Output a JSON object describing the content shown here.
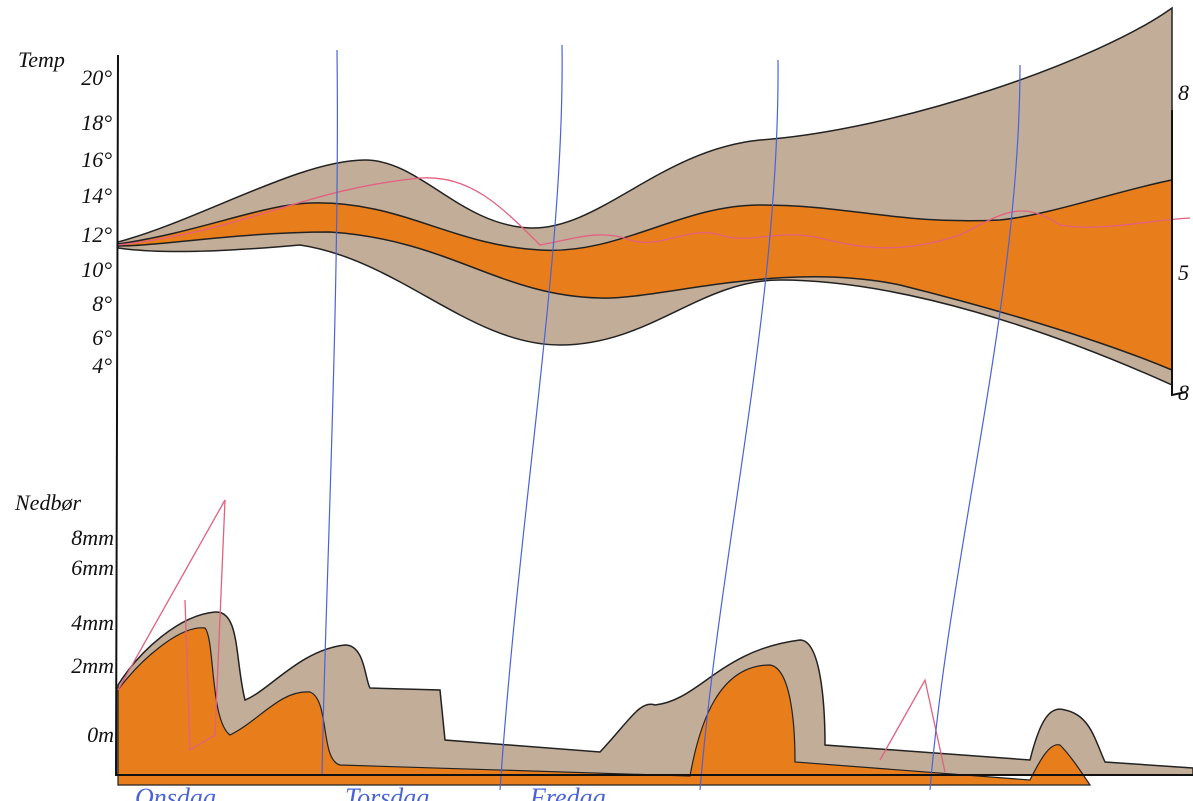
{
  "temperature": {
    "title": "Temp",
    "ticks": [
      "20°",
      "18°",
      "16°",
      "14°",
      "12°",
      "10°",
      "8°",
      "6°",
      "4°"
    ],
    "right_ticks": [
      "8",
      "5",
      "8"
    ]
  },
  "precipitation": {
    "title": "Nedbør",
    "ticks": [
      "8mm",
      "6mm",
      "4mm",
      "2mm",
      "0m"
    ]
  },
  "days": [
    "Onsdag",
    "Torsdag",
    "Fredag"
  ]
}
